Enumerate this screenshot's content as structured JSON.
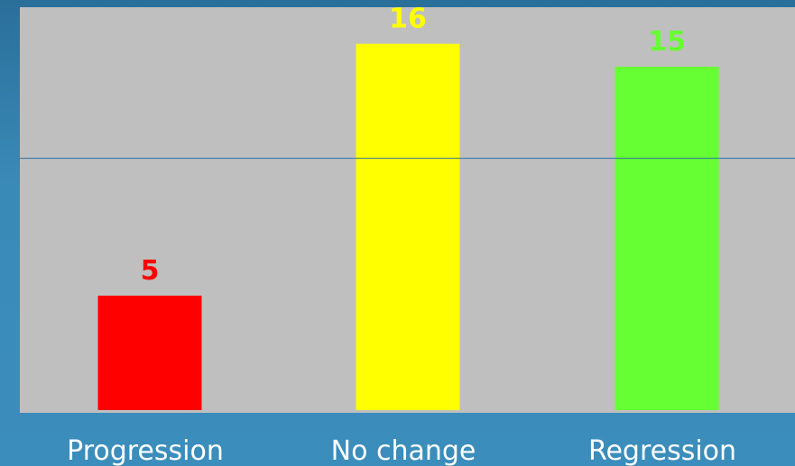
{
  "chart_data": {
    "type": "bar",
    "categories": [
      "Progression",
      "No change",
      "Regression"
    ],
    "values": [
      5,
      16,
      15
    ],
    "colors": [
      "#ff0000",
      "#ffff00",
      "#66ff33"
    ],
    "ylim": [
      0,
      17.6
    ],
    "reference_line": 11,
    "reference_line_color": "#2f6fa3",
    "plot_background": "#bfbfbf",
    "data_labels": true,
    "grid": false,
    "legend": "none"
  }
}
